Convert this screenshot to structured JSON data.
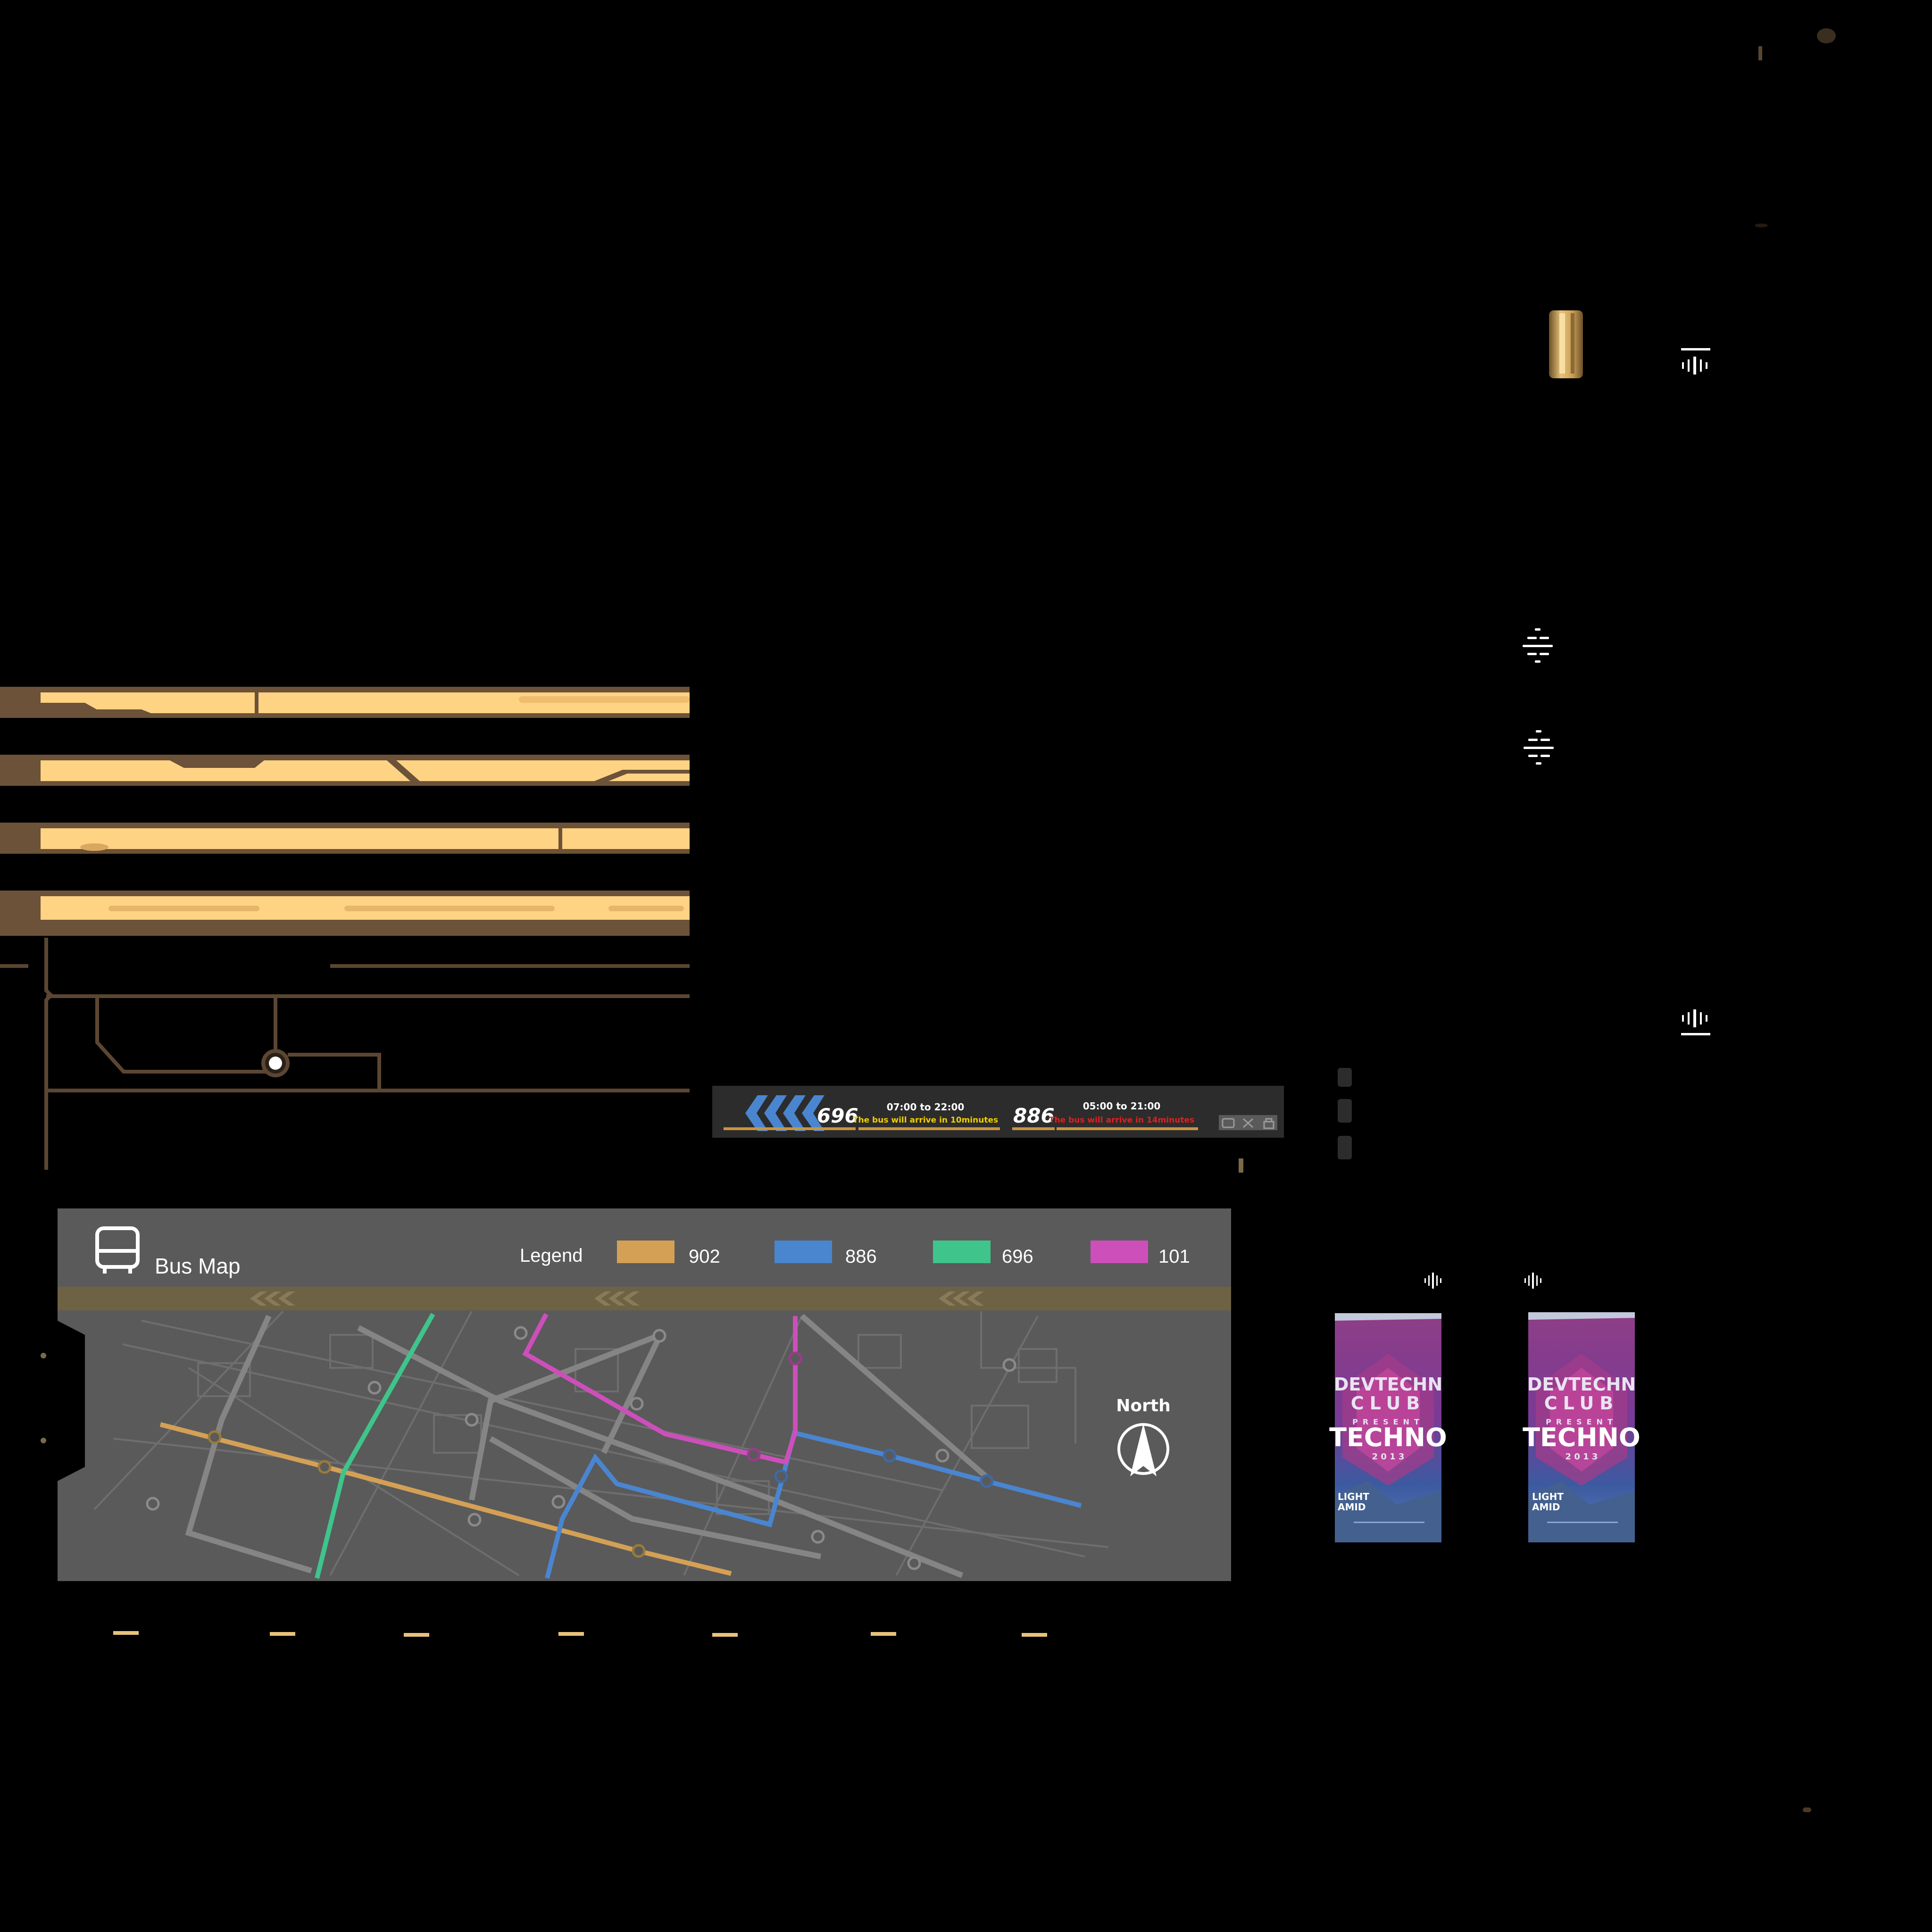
{
  "bus_map": {
    "title": "Bus Map",
    "legend_label": "Legend",
    "legend": [
      {
        "route": "902",
        "color": "#d4a056"
      },
      {
        "route": "886",
        "color": "#4a85d0"
      },
      {
        "route": "696",
        "color": "#3fc48c"
      },
      {
        "route": "101",
        "color": "#cc4fba"
      }
    ],
    "north_label": "North",
    "icons": {
      "header": "bus-icon",
      "compass": "north-arrow-icon"
    }
  },
  "ticker": {
    "route_a": {
      "number": "696",
      "hours": "07:00 to 22:00",
      "message": "The bus will arrive in 10minutes",
      "message_color": "#f0d000"
    },
    "route_b": {
      "number": "886",
      "hours": "05:00 to 21:00",
      "message": "The bus will arrive in 14minutes",
      "message_color": "#e02020"
    },
    "icons": [
      "bus-icon",
      "close-icon",
      "lock-icon"
    ]
  },
  "posters": [
    {
      "line1": "DEVTECHN",
      "line2": "CLUB",
      "line3": "PRESENT",
      "headline": "TECHNO",
      "year": "2 0 1 3",
      "tag1": "LIGHT",
      "tag2": "AMID"
    },
    {
      "line1": "DEVTECHN",
      "line2": "CLUB",
      "line3": "PRESENT",
      "headline": "TECHNO",
      "year": "2 0 1 3",
      "tag1": "LIGHT",
      "tag2": "AMID"
    }
  ],
  "colors": {
    "bar_fill": "#ffd384",
    "bar_frame": "#6b5238",
    "map_bg": "#5a5a5a",
    "map_stripe": "#6e6245",
    "ticker_bg": "#2c2c2c"
  }
}
